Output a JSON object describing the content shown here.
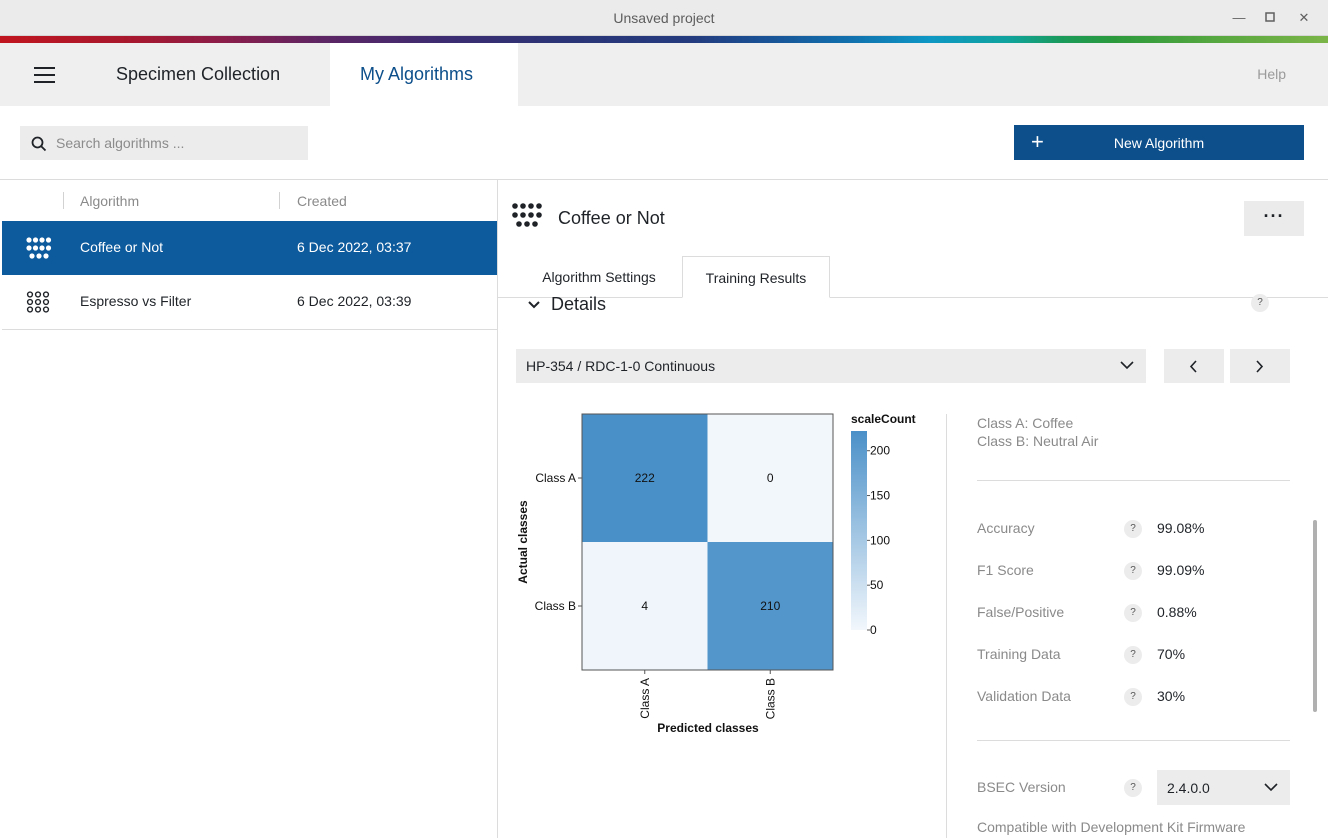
{
  "window": {
    "title": "Unsaved project"
  },
  "nav": {
    "tabs": [
      {
        "label": "Specimen Collection"
      },
      {
        "label": "My Algorithms"
      }
    ],
    "help": "Help"
  },
  "toolbar": {
    "search_placeholder": "Search algorithms ...",
    "new_button": "New Algorithm"
  },
  "list": {
    "headers": {
      "algorithm": "Algorithm",
      "created": "Created"
    },
    "rows": [
      {
        "name": "Coffee or Not",
        "created": "6 Dec 2022, 03:37",
        "selected": true
      },
      {
        "name": "Espresso vs Filter",
        "created": "6 Dec 2022, 03:39",
        "selected": false
      }
    ]
  },
  "detail": {
    "title": "Coffee or Not",
    "more": "···",
    "tabs": [
      {
        "label": "Algorithm Settings"
      },
      {
        "label": "Training Results"
      }
    ],
    "section": "Details",
    "help_mark": "?",
    "config_select": "HP-354 / RDC-1-0 Continuous",
    "classes": [
      "Class A: Coffee",
      "Class B: Neutral Air"
    ],
    "metrics": [
      {
        "label": "Accuracy",
        "value": "99.08%"
      },
      {
        "label": "F1 Score",
        "value": "99.09%"
      },
      {
        "label": "False/Positive",
        "value": "0.88%"
      },
      {
        "label": "Training Data",
        "value": "70%"
      },
      {
        "label": "Validation Data",
        "value": "30%"
      }
    ],
    "bsec": {
      "label": "BSEC Version",
      "value": "2.4.0.0"
    },
    "firmware_note": "Compatible with Development Kit Firmware"
  },
  "colors": {
    "brand_blue": "#0d4f8b",
    "selected_row": "#0d5a9c",
    "heat_high": "#4a90c8",
    "heat_low": "#f2f7fc"
  },
  "chart_data": {
    "type": "heatmap",
    "rows": [
      "Class A",
      "Class B"
    ],
    "columns": [
      "Class A",
      "Class B"
    ],
    "values": [
      [
        222,
        0
      ],
      [
        4,
        210
      ]
    ],
    "xlabel": "Predicted classes",
    "ylabel": "Actual classes",
    "legend_title": "scaleCount",
    "legend_ticks": [
      0,
      50,
      100,
      150,
      200
    ],
    "range": [
      0,
      222
    ]
  }
}
